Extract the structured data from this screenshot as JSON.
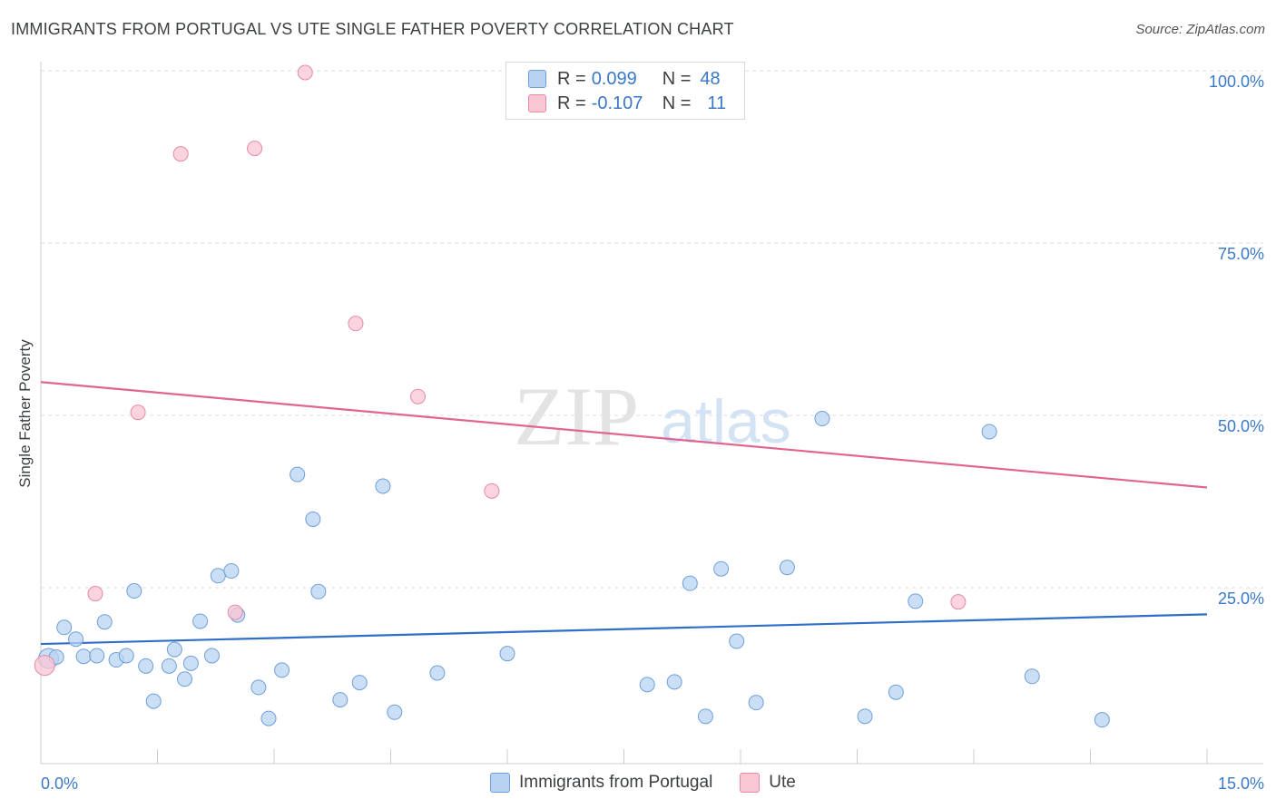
{
  "title": "IMMIGRANTS FROM PORTUGAL VS UTE SINGLE FATHER POVERTY CORRELATION CHART",
  "source": "Source: ZipAtlas.com",
  "watermark": {
    "zip": "ZIP",
    "atlas": "atlas"
  },
  "legend": {
    "rows": [
      {
        "r_label": "R =",
        "r_value": "0.099",
        "n_label": "N =",
        "n_value": "48"
      },
      {
        "r_label": "R =",
        "r_value": "-0.107",
        "n_label": "N =",
        "n_value": "11"
      }
    ]
  },
  "bottom_legend": [
    "Immigrants from Portugal",
    "Ute"
  ],
  "colors": {
    "blue_fill": "#b8d3f2",
    "blue_stroke": "#6f9fd8",
    "blue_line": "#2f6fc8",
    "pink_fill": "#f9c6d4",
    "pink_stroke": "#e68aa6",
    "pink_line": "#e0668f",
    "axis_text": "#3a78c9",
    "grid": "#dddddd"
  },
  "chart_data": {
    "type": "scatter",
    "title": "IMMIGRANTS FROM PORTUGAL VS UTE SINGLE FATHER POVERTY CORRELATION CHART",
    "xlabel": "",
    "ylabel": "Single Father Poverty",
    "xlim": [
      0,
      15
    ],
    "ylim": [
      0,
      100
    ],
    "x_tick_labels": [
      "0.0%",
      "15.0%"
    ],
    "y_ticks": [
      25,
      50,
      75,
      100
    ],
    "y_tick_labels": [
      "25.0%",
      "50.0%",
      "75.0%",
      "100.0%"
    ],
    "series": [
      {
        "name": "Immigrants from Portugal",
        "color": "#6f9fd8",
        "points": [
          [
            0.1,
            15.0
          ],
          [
            0.2,
            15.2
          ],
          [
            0.3,
            19.5
          ],
          [
            0.45,
            17.8
          ],
          [
            0.55,
            15.3
          ],
          [
            0.72,
            15.4
          ],
          [
            0.82,
            20.3
          ],
          [
            0.97,
            14.8
          ],
          [
            1.1,
            15.4
          ],
          [
            1.2,
            24.8
          ],
          [
            1.35,
            13.9
          ],
          [
            1.45,
            8.8
          ],
          [
            1.65,
            13.9
          ],
          [
            1.72,
            16.3
          ],
          [
            1.85,
            12.0
          ],
          [
            1.93,
            14.3
          ],
          [
            2.05,
            20.4
          ],
          [
            2.2,
            15.4
          ],
          [
            2.28,
            27.0
          ],
          [
            2.45,
            27.7
          ],
          [
            2.53,
            21.3
          ],
          [
            2.8,
            10.8
          ],
          [
            2.93,
            6.3
          ],
          [
            3.1,
            13.3
          ],
          [
            3.3,
            41.7
          ],
          [
            3.5,
            35.2
          ],
          [
            3.57,
            24.7
          ],
          [
            3.85,
            9.0
          ],
          [
            4.1,
            11.5
          ],
          [
            4.4,
            40.0
          ],
          [
            4.55,
            7.2
          ],
          [
            5.1,
            12.9
          ],
          [
            6.0,
            15.7
          ],
          [
            7.8,
            11.2
          ],
          [
            8.15,
            11.6
          ],
          [
            8.35,
            25.9
          ],
          [
            8.55,
            6.6
          ],
          [
            8.75,
            28.0
          ],
          [
            8.95,
            17.5
          ],
          [
            9.2,
            8.6
          ],
          [
            9.6,
            28.2
          ],
          [
            10.05,
            49.8
          ],
          [
            10.6,
            6.6
          ],
          [
            11.0,
            10.1
          ],
          [
            11.25,
            23.3
          ],
          [
            12.2,
            47.9
          ],
          [
            12.75,
            12.4
          ],
          [
            13.65,
            6.1
          ]
        ],
        "trend": {
          "start": [
            0,
            17.1
          ],
          "end": [
            15,
            21.4
          ]
        }
      },
      {
        "name": "Ute",
        "color": "#e68aa6",
        "points": [
          [
            0.05,
            14.0
          ],
          [
            0.7,
            24.4
          ],
          [
            1.25,
            50.7
          ],
          [
            1.8,
            88.2
          ],
          [
            2.5,
            21.7
          ],
          [
            2.75,
            89.0
          ],
          [
            3.4,
            100.0
          ],
          [
            4.05,
            63.6
          ],
          [
            4.85,
            53.0
          ],
          [
            5.8,
            39.3
          ],
          [
            11.8,
            23.2
          ]
        ],
        "trend": {
          "start": [
            0,
            55.1
          ],
          "end": [
            15,
            39.8
          ]
        }
      }
    ]
  }
}
